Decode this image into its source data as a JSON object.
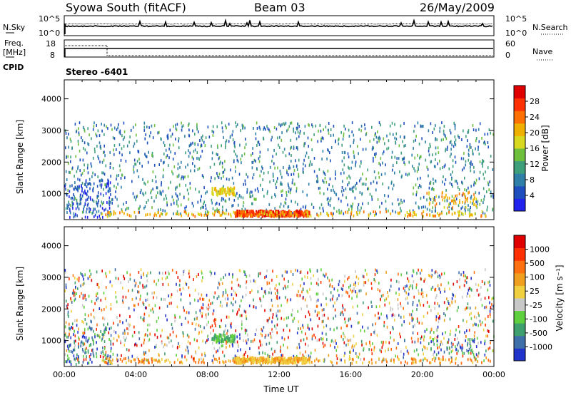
{
  "header": {
    "station": "Syowa South (fitACF)",
    "beam": "Beam 03",
    "date": "26/May/2009"
  },
  "panels": {
    "nsky": {
      "left_label": "N.Sky",
      "right_label": "N.Search",
      "left_ticks": [
        "10^5",
        "10^0"
      ],
      "right_ticks": [
        "10^5",
        "10^0"
      ]
    },
    "freq": {
      "left_label_1": "Freq.",
      "left_label_2": "[MHz]",
      "left_ticks": [
        "18",
        "8"
      ],
      "right_ticks": [
        "60",
        "0"
      ],
      "right_label": "Nave",
      "cpid_label": "CPID",
      "cpid_value": "Stereo -6401"
    }
  },
  "chart_data": [
    {
      "type": "heatmap",
      "name": "power",
      "ylabel": "Slant Range [km]",
      "xlabel": "",
      "xticks": [
        "00:00",
        "04:00",
        "08:00",
        "12:00",
        "16:00",
        "20:00",
        "00:00"
      ],
      "yticks": [
        "1000",
        "2000",
        "3000",
        "4000"
      ],
      "ylim": [
        180,
        4600
      ],
      "xlim_hours": [
        0,
        24
      ],
      "colorbar": {
        "label": "Power [dB]",
        "ticks": [
          "4",
          "8",
          "12",
          "16",
          "20",
          "24",
          "28"
        ],
        "range": [
          0,
          32
        ],
        "colors": [
          "#2222ee",
          "#1f4fbf",
          "#2f7fa8",
          "#3f9f7a",
          "#6fbf3f",
          "#d8d820",
          "#f0b000",
          "#ff7000",
          "#ff3000",
          "#e00000"
        ]
      }
    },
    {
      "type": "heatmap",
      "name": "velocity",
      "ylabel": "Slant Range [km]",
      "xlabel": "Time UT",
      "xticks": [
        "00:00",
        "04:00",
        "08:00",
        "12:00",
        "16:00",
        "20:00",
        "00:00"
      ],
      "yticks": [
        "1000",
        "2000",
        "3000",
        "4000"
      ],
      "ylim": [
        180,
        4600
      ],
      "xlim_hours": [
        0,
        24
      ],
      "colorbar": {
        "label": "Velocity [m s⁻¹]",
        "ticks": [
          "1000",
          "500",
          "100",
          "25",
          "-25",
          "-100",
          "-500",
          "-1000"
        ],
        "colors": [
          "#2233cc",
          "#3f6fa8",
          "#3f9f6f",
          "#5fcf3f",
          "#c8c8c8",
          "#f0d040",
          "#f0a020",
          "#ff7010",
          "#ff3000",
          "#e00000"
        ]
      }
    }
  ]
}
